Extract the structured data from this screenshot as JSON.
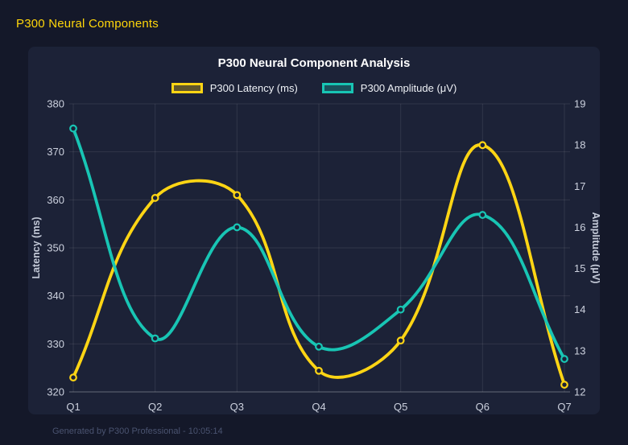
{
  "page": {
    "header_title": "P300 Neural Components",
    "footer_text": "Generated by P300 Professional - 10:05:14"
  },
  "colors": {
    "page_bg": "#141829",
    "panel_bg": "#1c2237",
    "accent": "#ffd60a",
    "latency_line": "#ffd514",
    "amplitude_line": "#18c5b4",
    "grid_line": "rgba(255,255,255,0.09)",
    "axis_line": "rgba(255,255,255,0.32)",
    "title_text": "#ffffff",
    "tick_text": "#ccd1de"
  },
  "chart_data": {
    "type": "line",
    "title": "P300 Neural Component Analysis",
    "categories": [
      "Q1",
      "Q2",
      "Q3",
      "Q4",
      "Q5",
      "Q6",
      "Q7"
    ],
    "series": [
      {
        "name": "P300 Latency (ms)",
        "axis": "left",
        "color": "#ffd514",
        "values": [
          323.0,
          360.4,
          361.0,
          324.4,
          330.7,
          371.4,
          321.5
        ]
      },
      {
        "name": "P300 Amplitude (μV)",
        "axis": "right",
        "color": "#18c5b4",
        "values": [
          18.4,
          13.3,
          16.0,
          13.1,
          14.0,
          16.3,
          12.8
        ]
      }
    ],
    "left_axis": {
      "label": "Latency (ms)",
      "min": 320,
      "max": 380,
      "ticks": [
        380,
        370,
        360,
        350,
        340,
        330,
        320
      ]
    },
    "right_axis": {
      "label": "Amplitude (μV)",
      "min": 12,
      "max": 19,
      "ticks": [
        19,
        18,
        17,
        16,
        15,
        14,
        13,
        12
      ]
    },
    "grid": true,
    "legend_position": "top",
    "curve": "smooth"
  }
}
